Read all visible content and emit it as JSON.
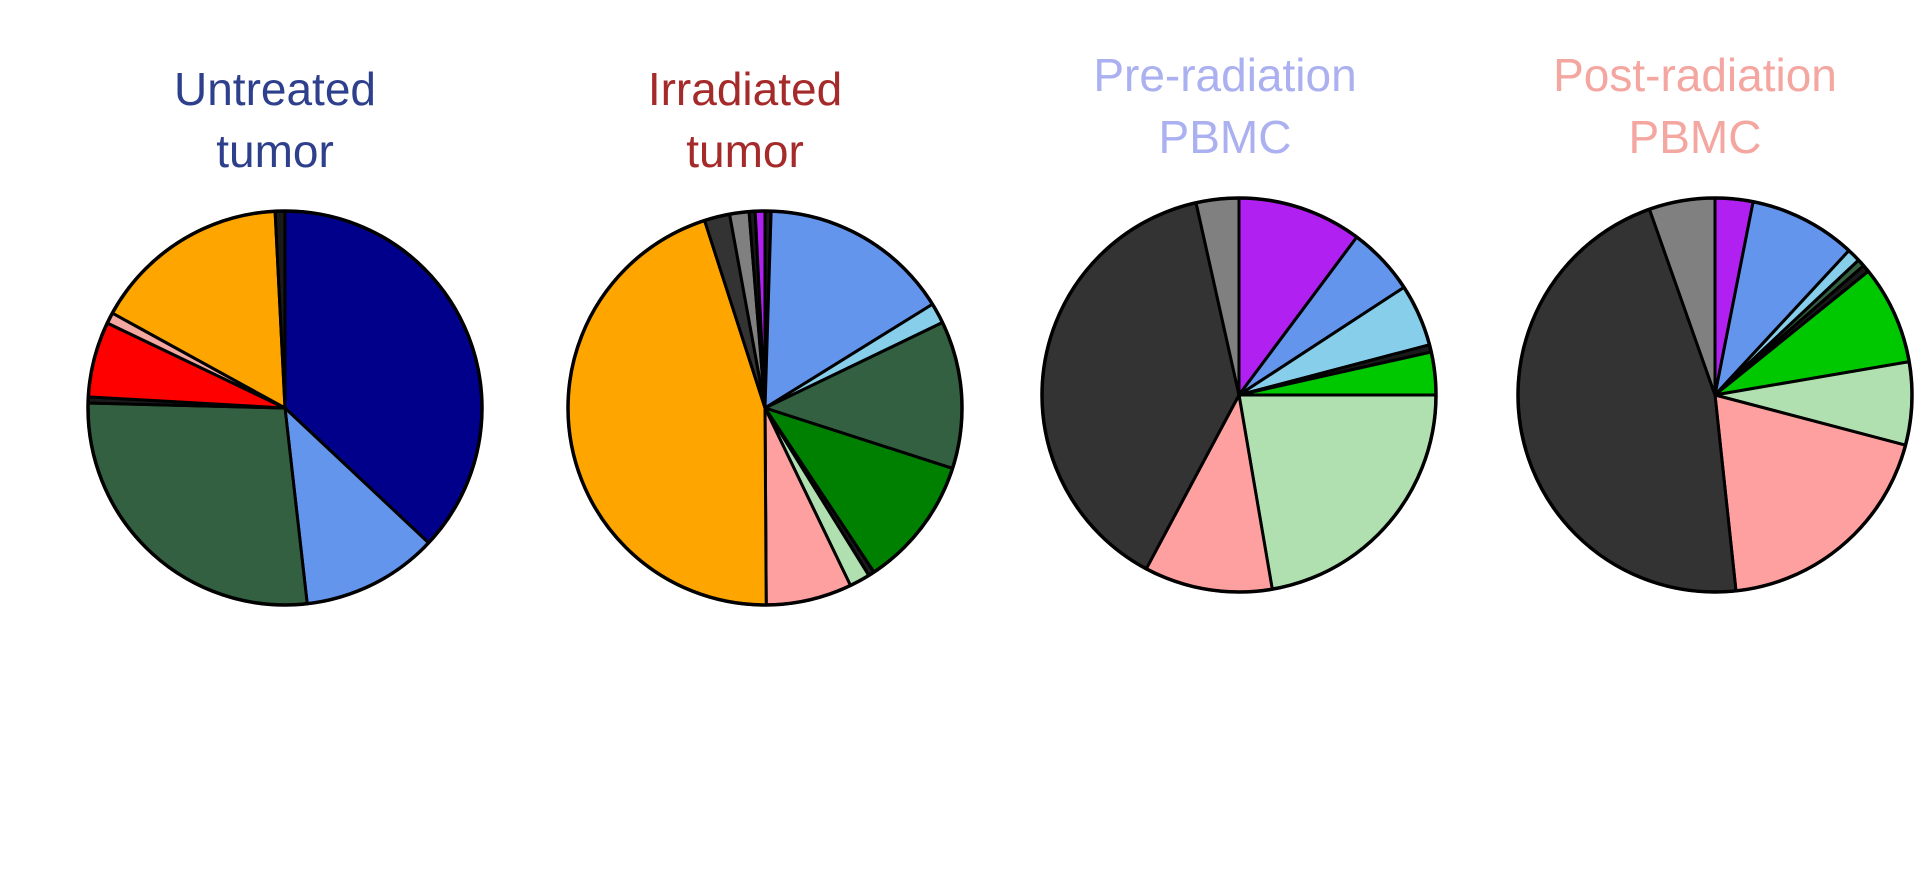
{
  "chart_data": [
    {
      "type": "pie",
      "title_lines": [
        "Untreated",
        "tumor"
      ],
      "title_color": "#2e3f8c",
      "start": "top, clockwise",
      "slices": [
        {
          "value": 37.0,
          "color": "#00008b"
        },
        {
          "value": 11.2,
          "color": "#6495ed"
        },
        {
          "value": 27.2,
          "color": "#336040"
        },
        {
          "value": 0.5,
          "color": "#1a1a1a"
        },
        {
          "value": 6.2,
          "color": "#ff0000"
        },
        {
          "value": 0.9,
          "color": "#f4a6a0"
        },
        {
          "value": 16.2,
          "color": "#ffa500"
        },
        {
          "value": 0.8,
          "color": "#1a1a1a"
        }
      ]
    },
    {
      "type": "pie",
      "title_lines": [
        "Irradiated",
        "tumor"
      ],
      "title_color": "#a52a2a",
      "start": "top, clockwise",
      "slices": [
        {
          "value": 0.5,
          "color": "#1a1a1a"
        },
        {
          "value": 15.8,
          "color": "#6495ed"
        },
        {
          "value": 1.7,
          "color": "#87ceeb"
        },
        {
          "value": 12.2,
          "color": "#336040"
        },
        {
          "value": 10.8,
          "color": "#008000"
        },
        {
          "value": 0.5,
          "color": "#1a1a1a"
        },
        {
          "value": 1.7,
          "color": "#b0e0b0"
        },
        {
          "value": 7.1,
          "color": "#ffa0a0"
        },
        {
          "value": 45.5,
          "color": "#ffa500"
        },
        {
          "value": 2.1,
          "color": "#333333"
        },
        {
          "value": 1.6,
          "color": "#808080"
        },
        {
          "value": 0.5,
          "color": "#1a1a1a"
        },
        {
          "value": 0.8,
          "color": "#b020f0"
        }
      ]
    },
    {
      "type": "pie",
      "title_lines": [
        "Pre-radiation",
        "PBMC"
      ],
      "title_color": "#aab0f0",
      "start": "top, clockwise",
      "slices": [
        {
          "value": 10.2,
          "color": "#b020f0"
        },
        {
          "value": 5.6,
          "color": "#6495ed"
        },
        {
          "value": 5.1,
          "color": "#87ceeb"
        },
        {
          "value": 0.6,
          "color": "#1a1a1a"
        },
        {
          "value": 3.5,
          "color": "#00c800"
        },
        {
          "value": 22.3,
          "color": "#b0e0b0"
        },
        {
          "value": 10.5,
          "color": "#ffa0a0"
        },
        {
          "value": 38.7,
          "color": "#333333"
        },
        {
          "value": 3.5,
          "color": "#808080"
        }
      ]
    },
    {
      "type": "pie",
      "title_lines": [
        "Post-radiation",
        "PBMC"
      ],
      "title_color": "#f4a6a0",
      "start": "top, clockwise",
      "slices": [
        {
          "value": 3.1,
          "color": "#b020f0"
        },
        {
          "value": 8.8,
          "color": "#6495ed"
        },
        {
          "value": 1.1,
          "color": "#87ceeb"
        },
        {
          "value": 0.6,
          "color": "#336040"
        },
        {
          "value": 0.6,
          "color": "#1a1a1a"
        },
        {
          "value": 8.1,
          "color": "#00c800"
        },
        {
          "value": 6.8,
          "color": "#b0e0b0"
        },
        {
          "value": 19.2,
          "color": "#ffa0a0"
        },
        {
          "value": 46.3,
          "color": "#333333"
        },
        {
          "value": 5.4,
          "color": "#808080"
        }
      ]
    }
  ]
}
